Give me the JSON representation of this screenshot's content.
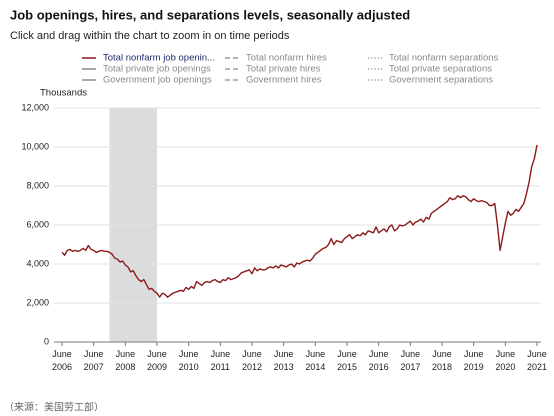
{
  "chart_data": {
    "type": "line",
    "title": "Job openings, hires, and separations levels, seasonally adjusted",
    "subtitle": "Click and drag within the chart to zoom in on time periods",
    "y_label": "Thousands",
    "source_note": "（来源：美国劳工部）",
    "xlim": [
      "2006-06",
      "2021-06"
    ],
    "xticks": [
      {
        "value": "2006-06",
        "label": "June 2006"
      },
      {
        "value": "2007-06",
        "label": "June 2007"
      },
      {
        "value": "2008-06",
        "label": "June 2008"
      },
      {
        "value": "2009-06",
        "label": "June 2009"
      },
      {
        "value": "2010-06",
        "label": "June 2010"
      },
      {
        "value": "2011-06",
        "label": "June 2011"
      },
      {
        "value": "2012-06",
        "label": "June 2012"
      },
      {
        "value": "2013-06",
        "label": "June 2013"
      },
      {
        "value": "2014-06",
        "label": "June 2014"
      },
      {
        "value": "2015-06",
        "label": "June 2015"
      },
      {
        "value": "2016-06",
        "label": "June 2016"
      },
      {
        "value": "2017-06",
        "label": "June 2017"
      },
      {
        "value": "2018-06",
        "label": "June 2018"
      },
      {
        "value": "2019-06",
        "label": "June 2019"
      },
      {
        "value": "2020-06",
        "label": "June 2020"
      },
      {
        "value": "2021-06",
        "label": "June 2021"
      }
    ],
    "ylim": [
      0,
      12000
    ],
    "yticks": [
      0,
      {
        "value": 2000,
        "label": "2,000"
      },
      {
        "value": 4000,
        "label": "4,000"
      },
      {
        "value": 6000,
        "label": "6,000"
      },
      {
        "value": 8000,
        "label": "8,000"
      },
      {
        "value": 10000,
        "label": "10,000"
      },
      {
        "value": 12000,
        "label": "12,000"
      }
    ],
    "grid": true,
    "shaded_periods": [
      [
        "2007-12",
        "2009-06"
      ]
    ],
    "shade_color": "#dcdcdc",
    "x": [
      "2006-06",
      "2006-07",
      "2006-08",
      "2006-09",
      "2006-10",
      "2006-11",
      "2006-12",
      "2007-01",
      "2007-02",
      "2007-03",
      "2007-04",
      "2007-05",
      "2007-06",
      "2007-07",
      "2007-08",
      "2007-09",
      "2007-10",
      "2007-11",
      "2007-12",
      "2008-01",
      "2008-02",
      "2008-03",
      "2008-04",
      "2008-05",
      "2008-06",
      "2008-07",
      "2008-08",
      "2008-09",
      "2008-10",
      "2008-11",
      "2008-12",
      "2009-01",
      "2009-02",
      "2009-03",
      "2009-04",
      "2009-05",
      "2009-06",
      "2009-07",
      "2009-08",
      "2009-09",
      "2009-10",
      "2009-11",
      "2009-12",
      "2010-01",
      "2010-02",
      "2010-03",
      "2010-04",
      "2010-05",
      "2010-06",
      "2010-07",
      "2010-08",
      "2010-09",
      "2010-10",
      "2010-11",
      "2010-12",
      "2011-01",
      "2011-02",
      "2011-03",
      "2011-04",
      "2011-05",
      "2011-06",
      "2011-07",
      "2011-08",
      "2011-09",
      "2011-10",
      "2011-11",
      "2011-12",
      "2012-01",
      "2012-02",
      "2012-03",
      "2012-04",
      "2012-05",
      "2012-06",
      "2012-07",
      "2012-08",
      "2012-09",
      "2012-10",
      "2012-11",
      "2012-12",
      "2013-01",
      "2013-02",
      "2013-03",
      "2013-04",
      "2013-05",
      "2013-06",
      "2013-07",
      "2013-08",
      "2013-09",
      "2013-10",
      "2013-11",
      "2013-12",
      "2014-01",
      "2014-02",
      "2014-03",
      "2014-04",
      "2014-05",
      "2014-06",
      "2014-07",
      "2014-08",
      "2014-09",
      "2014-10",
      "2014-11",
      "2014-12",
      "2015-01",
      "2015-02",
      "2015-03",
      "2015-04",
      "2015-05",
      "2015-06",
      "2015-07",
      "2015-08",
      "2015-09",
      "2015-10",
      "2015-11",
      "2015-12",
      "2016-01",
      "2016-02",
      "2016-03",
      "2016-04",
      "2016-05",
      "2016-06",
      "2016-07",
      "2016-08",
      "2016-09",
      "2016-10",
      "2016-11",
      "2016-12",
      "2017-01",
      "2017-02",
      "2017-03",
      "2017-04",
      "2017-05",
      "2017-06",
      "2017-07",
      "2017-08",
      "2017-09",
      "2017-10",
      "2017-11",
      "2017-12",
      "2018-01",
      "2018-02",
      "2018-03",
      "2018-04",
      "2018-05",
      "2018-06",
      "2018-07",
      "2018-08",
      "2018-09",
      "2018-10",
      "2018-11",
      "2018-12",
      "2019-01",
      "2019-02",
      "2019-03",
      "2019-04",
      "2019-05",
      "2019-06",
      "2019-07",
      "2019-08",
      "2019-09",
      "2019-10",
      "2019-11",
      "2019-12",
      "2020-01",
      "2020-02",
      "2020-03",
      "2020-04",
      "2020-05",
      "2020-06",
      "2020-07",
      "2020-08",
      "2020-09",
      "2020-10",
      "2020-11",
      "2020-12",
      "2021-01",
      "2021-02",
      "2021-03",
      "2021-04",
      "2021-05",
      "2021-06"
    ],
    "series": [
      {
        "name": "Total nonfarm job openin...",
        "color": "#8b1a1a",
        "values": [
          4600,
          4450,
          4700,
          4750,
          4650,
          4700,
          4650,
          4700,
          4800,
          4700,
          4950,
          4750,
          4700,
          4600,
          4650,
          4700,
          4650,
          4650,
          4600,
          4500,
          4300,
          4250,
          4100,
          4150,
          3950,
          3850,
          3600,
          3650,
          3400,
          3200,
          3100,
          3200,
          2950,
          2700,
          2750,
          2600,
          2500,
          2300,
          2500,
          2450,
          2300,
          2400,
          2500,
          2550,
          2600,
          2650,
          2600,
          2800,
          2700,
          2850,
          2750,
          3100,
          3000,
          2900,
          3050,
          3100,
          3050,
          3150,
          3200,
          3100,
          3050,
          3200,
          3150,
          3300,
          3200,
          3250,
          3300,
          3400,
          3550,
          3600,
          3650,
          3700,
          3500,
          3800,
          3650,
          3750,
          3700,
          3700,
          3800,
          3850,
          3800,
          3900,
          3800,
          3950,
          3900,
          3850,
          3950,
          4000,
          3850,
          4050,
          4000,
          4100,
          4150,
          4200,
          4150,
          4300,
          4500,
          4600,
          4700,
          4800,
          4850,
          5000,
          5300,
          5000,
          5200,
          5150,
          5100,
          5300,
          5400,
          5500,
          5300,
          5400,
          5500,
          5450,
          5600,
          5500,
          5700,
          5650,
          5600,
          5900,
          5600,
          5700,
          5800,
          5650,
          5900,
          6000,
          5700,
          5800,
          6000,
          5950,
          6000,
          6100,
          6200,
          6000,
          6150,
          6200,
          6300,
          6150,
          6400,
          6300,
          6600,
          6700,
          6800,
          6900,
          7000,
          7100,
          7200,
          7400,
          7300,
          7350,
          7500,
          7400,
          7500,
          7450,
          7300,
          7200,
          7350,
          7250,
          7200,
          7250,
          7200,
          7150,
          7000,
          7000,
          7100,
          6000,
          4700,
          5400,
          6100,
          6700,
          6500,
          6600,
          6800,
          6700,
          6900,
          7100,
          7600,
          8200,
          9000,
          9400,
          10100
        ]
      }
    ],
    "series_label_color": "#1f2a6b",
    "inactive_legend_entries": [
      {
        "name": "Total nonfarm hires",
        "style": "dashed",
        "color": "#8a8a8a"
      },
      {
        "name": "Total nonfarm separations",
        "style": "dotted",
        "color": "#8a8a8a"
      },
      {
        "name": "Total private job openings",
        "style": "solid",
        "color": "#8a8a8a"
      },
      {
        "name": "Total private hires",
        "style": "dashed",
        "color": "#8a8a8a"
      },
      {
        "name": "Total private separations",
        "style": "dotted",
        "color": "#8a8a8a"
      },
      {
        "name": "Government job openings",
        "style": "solid",
        "color": "#8a8a8a"
      },
      {
        "name": "Government hires",
        "style": "dashed",
        "color": "#8a8a8a"
      },
      {
        "name": "Government separations",
        "style": "dotted",
        "color": "#8a8a8a"
      }
    ]
  }
}
